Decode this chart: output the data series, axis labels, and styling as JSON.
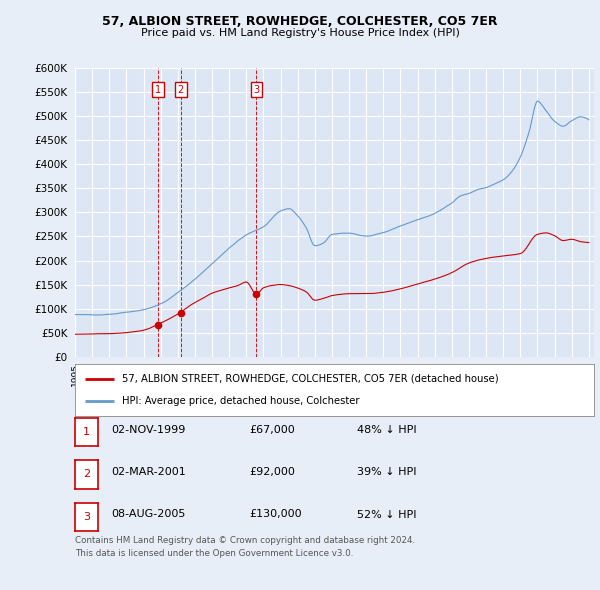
{
  "title": "57, ALBION STREET, ROWHEDGE, COLCHESTER, CO5 7ER",
  "subtitle": "Price paid vs. HM Land Registry's House Price Index (HPI)",
  "ylim": [
    0,
    600000
  ],
  "yticks": [
    0,
    50000,
    100000,
    150000,
    200000,
    250000,
    300000,
    350000,
    400000,
    450000,
    500000,
    550000,
    600000
  ],
  "xlim_start": 1995.0,
  "xlim_end": 2025.3,
  "bg_color": "#e8eef8",
  "plot_bg": "#dce6f5",
  "grid_color": "#ffffff",
  "sale_color": "#cc0000",
  "hpi_color": "#6699cc",
  "sales": [
    {
      "date": 1999.84,
      "price": 67000,
      "label": "1"
    },
    {
      "date": 2001.17,
      "price": 92000,
      "label": "2"
    },
    {
      "date": 2005.59,
      "price": 130000,
      "label": "3"
    }
  ],
  "footer": "Contains HM Land Registry data © Crown copyright and database right 2024.\nThis data is licensed under the Open Government Licence v3.0.",
  "legend_entries": [
    "57, ALBION STREET, ROWHEDGE, COLCHESTER, CO5 7ER (detached house)",
    "HPI: Average price, detached house, Colchester"
  ],
  "table_rows": [
    {
      "num": "1",
      "date": "02-NOV-1999",
      "price": "£67,000",
      "pct": "48% ↓ HPI"
    },
    {
      "num": "2",
      "date": "02-MAR-2001",
      "price": "£92,000",
      "pct": "39% ↓ HPI"
    },
    {
      "num": "3",
      "date": "08-AUG-2005",
      "price": "£130,000",
      "pct": "52% ↓ HPI"
    }
  ]
}
